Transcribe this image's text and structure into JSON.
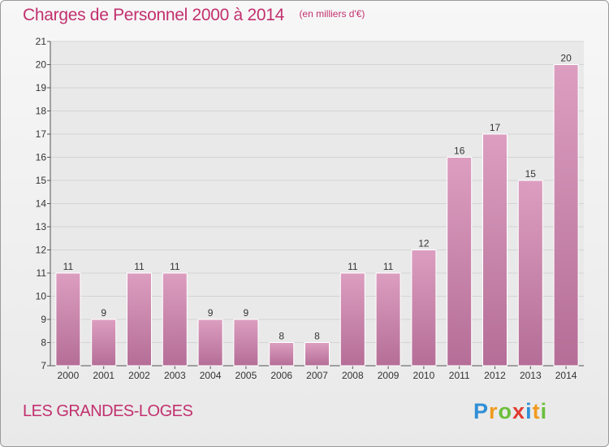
{
  "chart_data": {
    "type": "bar",
    "title": "Charges de Personnel 2000 à 2014",
    "subtitle": "(en milliers d'€)",
    "categories": [
      "2000",
      "2001",
      "2002",
      "2003",
      "2004",
      "2005",
      "2006",
      "2007",
      "2008",
      "2009",
      "2010",
      "2011",
      "2012",
      "2013",
      "2014"
    ],
    "values": [
      11,
      9,
      11,
      11,
      9,
      9,
      8,
      8,
      11,
      11,
      12,
      16,
      17,
      15,
      20
    ],
    "ylim": [
      7,
      21
    ],
    "yticks": [
      7,
      8,
      9,
      10,
      11,
      12,
      13,
      14,
      15,
      16,
      17,
      18,
      19,
      20,
      21
    ],
    "grid": "horizontal",
    "bar_color": "#dc9ec0",
    "bar_color_dark": "#b56e97"
  },
  "commune": "LES GRANDES-LOGES",
  "logo": {
    "letters": [
      "P",
      "r",
      "o",
      "x",
      "i",
      "t",
      "i"
    ],
    "colors": [
      "#2f8fd6",
      "#f19a1f",
      "#6cbe3c",
      "#e03c31",
      "#2f8fd6",
      "#f19a1f",
      "#6cbe3c"
    ]
  },
  "colors": {
    "accent": "#c2306e"
  }
}
